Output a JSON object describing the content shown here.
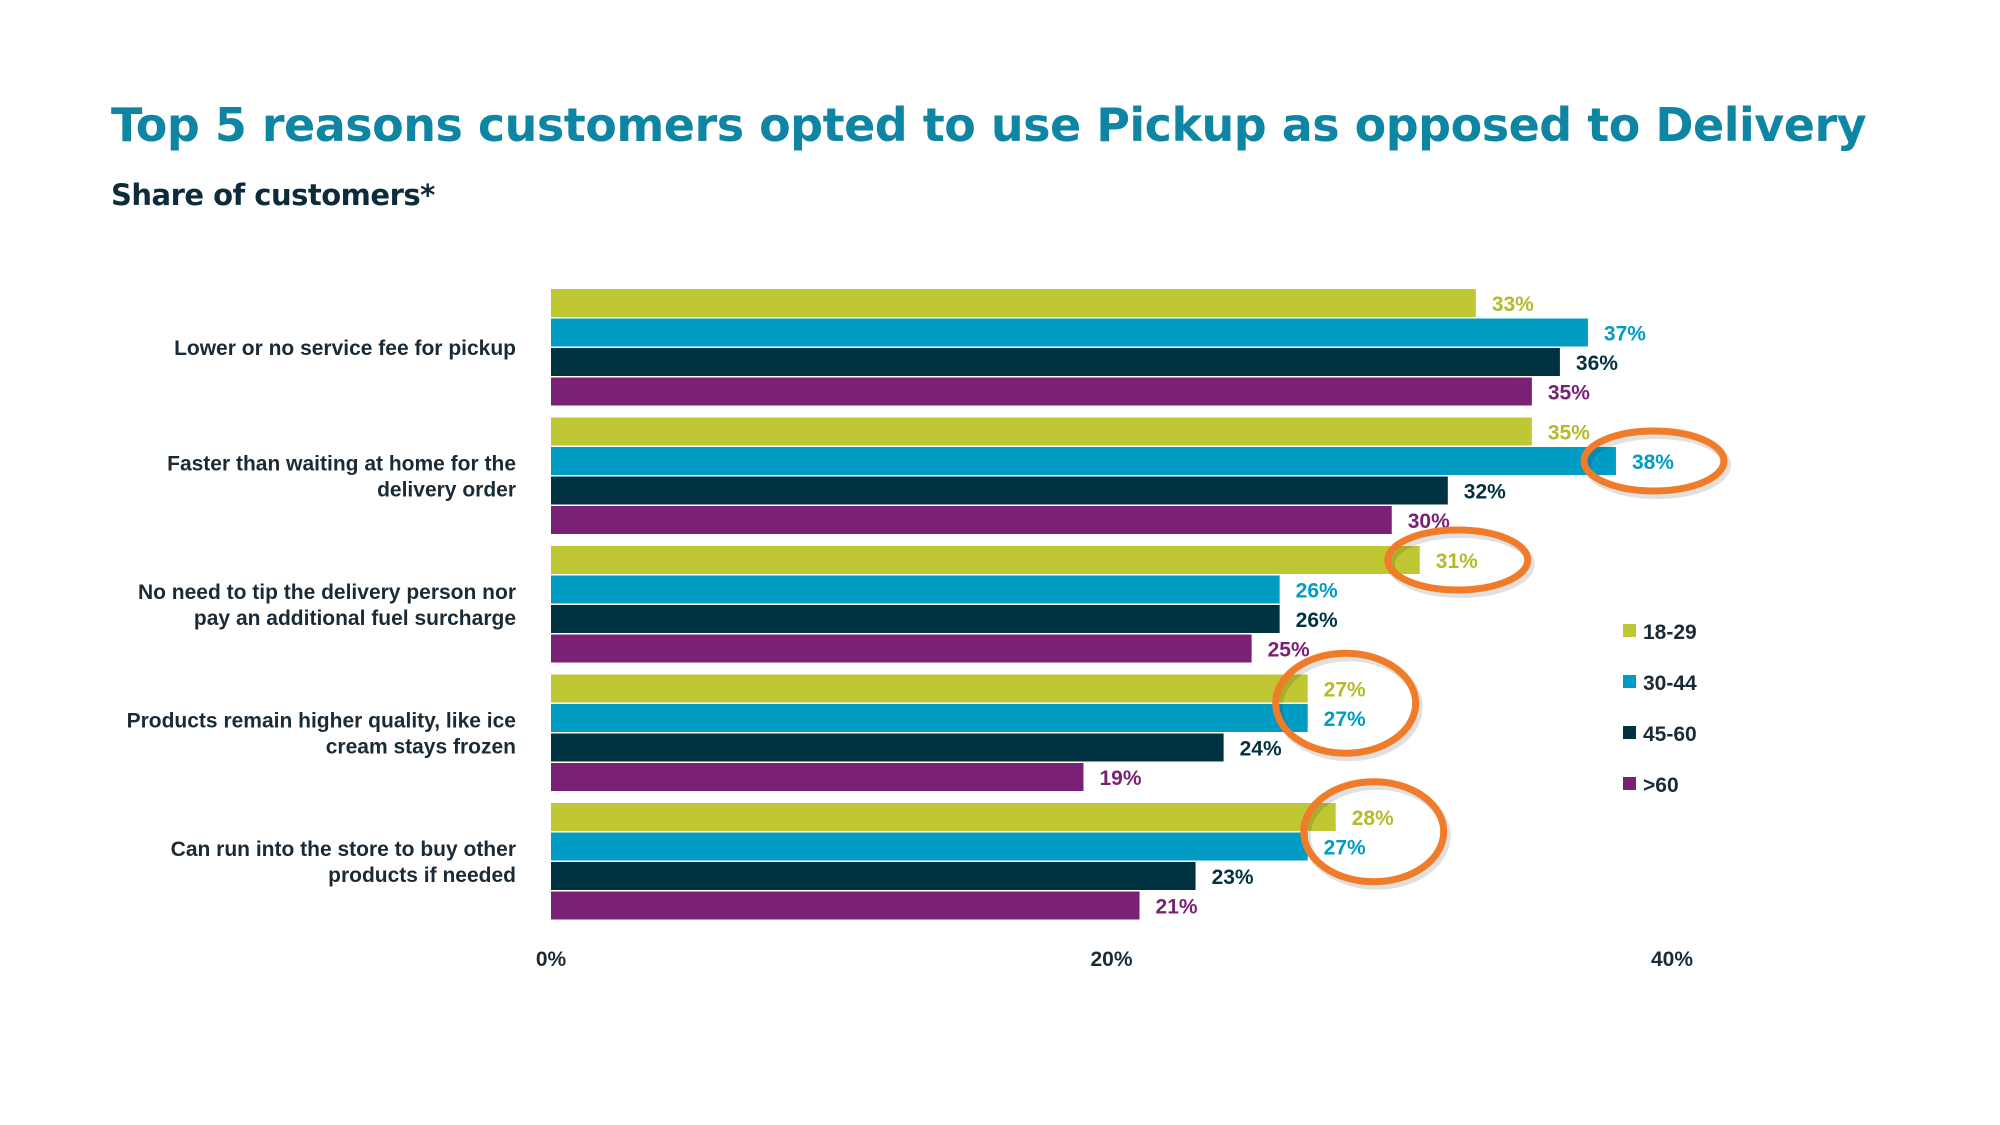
{
  "chart_data": {
    "type": "bar",
    "orientation": "horizontal",
    "title": "Top 5 reasons customers opted to use Pickup as opposed to Delivery",
    "subtitle": "Share of customers*",
    "categories": [
      [
        "Lower or no service fee for pickup"
      ],
      [
        "Faster than waiting at home for the",
        "delivery order"
      ],
      [
        "No need to tip the delivery person nor",
        "pay an additional fuel surcharge"
      ],
      [
        "Products remain higher quality, like ice",
        "cream stays frozen"
      ],
      [
        "Can run into the store to buy other",
        "products if needed"
      ]
    ],
    "series": [
      {
        "name": "18-29",
        "color": "#bfc733",
        "values": [
          33,
          35,
          31,
          27,
          28
        ]
      },
      {
        "name": "30-44",
        "color": "#009cc4",
        "values": [
          37,
          38,
          26,
          27,
          27
        ]
      },
      {
        "name": "45-60",
        "color": "#003241",
        "values": [
          36,
          32,
          26,
          24,
          23
        ]
      },
      {
        "name": ">60",
        "color": "#7a2175",
        "values": [
          35,
          30,
          25,
          19,
          21
        ]
      }
    ],
    "value_suffix": "%",
    "xlim": [
      0,
      40
    ],
    "xticks": [
      "0%",
      "20%",
      "40%"
    ],
    "grid": false,
    "legend_position": "right",
    "highlight_color": "#f07c2a",
    "highlights": [
      {
        "category": 1,
        "series": [
          1
        ]
      },
      {
        "category": 2,
        "series": [
          0
        ]
      },
      {
        "category": 3,
        "series": [
          0,
          1
        ]
      },
      {
        "category": 4,
        "series": [
          0,
          1
        ]
      }
    ]
  }
}
